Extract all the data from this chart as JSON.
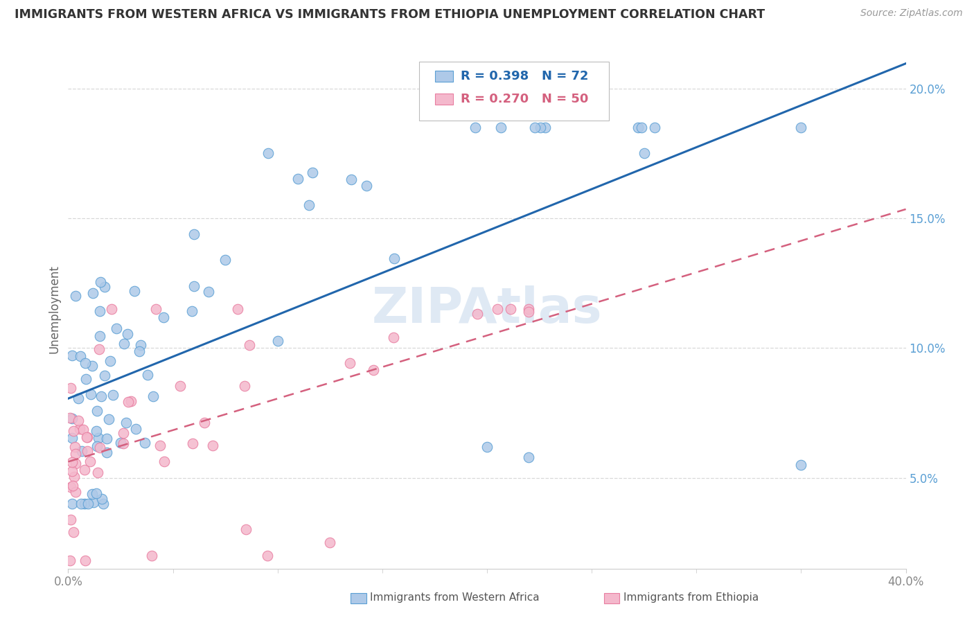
{
  "title": "IMMIGRANTS FROM WESTERN AFRICA VS IMMIGRANTS FROM ETHIOPIA UNEMPLOYMENT CORRELATION CHART",
  "source": "Source: ZipAtlas.com",
  "ylabel": "Unemployment",
  "y_ticks": [
    0.05,
    0.1,
    0.15,
    0.2
  ],
  "y_tick_labels": [
    "5.0%",
    "10.0%",
    "15.0%",
    "20.0%"
  ],
  "xlim": [
    0.0,
    0.4
  ],
  "ylim": [
    0.015,
    0.215
  ],
  "blue_R": 0.398,
  "blue_N": 72,
  "pink_R": 0.27,
  "pink_N": 50,
  "blue_fill_color": "#aec9e8",
  "pink_fill_color": "#f4b8cc",
  "blue_edge_color": "#5a9fd4",
  "pink_edge_color": "#e87da0",
  "blue_line_color": "#2166ac",
  "pink_line_color": "#d4607e",
  "watermark": "ZIPAtlas",
  "background_color": "#ffffff",
  "grid_color": "#d8d8d8",
  "title_color": "#333333",
  "source_color": "#999999",
  "tick_color": "#5a9fd4",
  "axis_tick_color": "#888888"
}
